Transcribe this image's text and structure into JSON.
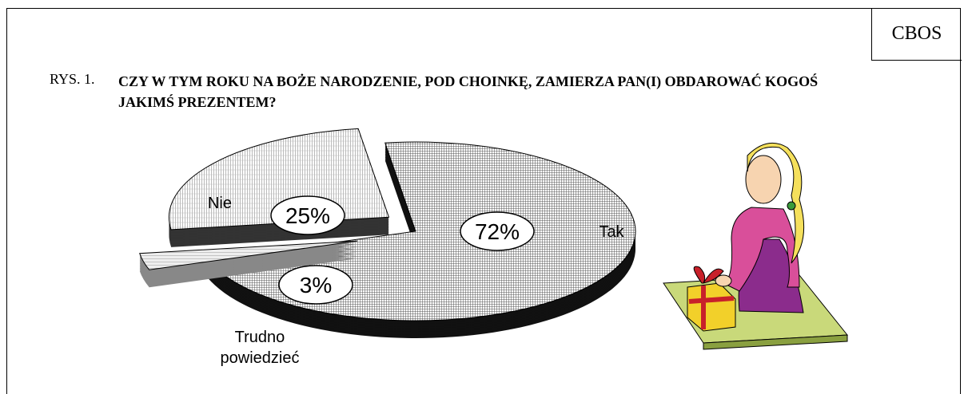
{
  "chart_data": {
    "type": "pie",
    "source": "CBOS",
    "figure_number": "RYS. 1.",
    "title": "CZY W TYM ROKU NA BOŻE NARODZENIE, POD CHOINKĘ, ZAMIERZA PAN(I) OBDAROWAĆ KOGOŚ JAKIMŚ PREZENTEM?",
    "categories": [
      "Tak",
      "Trudno powiedzieć",
      "Nie"
    ],
    "values": [
      72,
      3,
      25
    ],
    "value_labels": [
      "72%",
      "3%",
      "25%"
    ]
  }
}
